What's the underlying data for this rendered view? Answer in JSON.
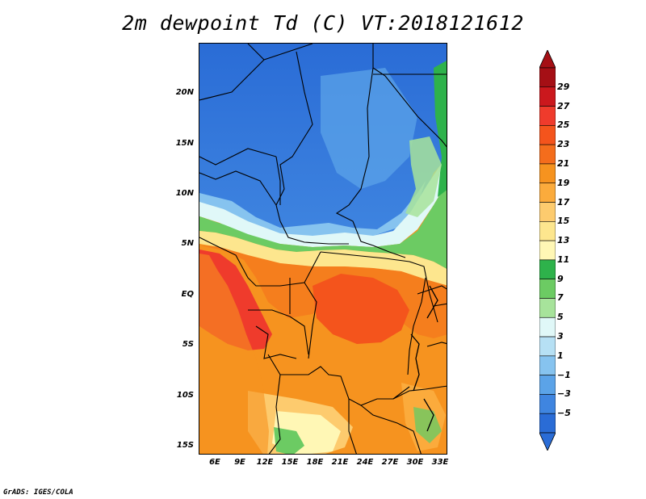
{
  "title": "2m dewpoint Td (C) VT:2018121612",
  "footer": "GrADS: IGES/COLA",
  "map": {
    "lat_labels": [
      "20N",
      "15N",
      "10N",
      "5N",
      "EQ",
      "5S",
      "10S",
      "15S"
    ],
    "lon_labels": [
      "6E",
      "9E",
      "12E",
      "15E",
      "18E",
      "21E",
      "24E",
      "27E",
      "30E",
      "33E"
    ],
    "lon_range": [
      3.5,
      33.5
    ],
    "lat_range": [
      -16,
      24.5
    ]
  },
  "colorbar": {
    "labels": [
      "29",
      "27",
      "25",
      "23",
      "21",
      "19",
      "17",
      "15",
      "13",
      "11",
      "9",
      "7",
      "5",
      "3",
      "1",
      "−1",
      "−3",
      "−5"
    ],
    "colors": [
      "#a50f15",
      "#cb181d",
      "#ef3b2c",
      "#f4541c",
      "#f46d1c",
      "#f6931f",
      "#fbab3c",
      "#fdcb6e",
      "#fde68e",
      "#fff7b5",
      "#2eb24b",
      "#6ccb63",
      "#a7e39b",
      "#e0f8f8",
      "#b6e0f4",
      "#86c3ef",
      "#5ba3e8",
      "#3f85e0",
      "#2a6cd6"
    ],
    "top_arrow_color": "#a50f15",
    "bottom_arrow_color": "#2a6cd6"
  }
}
